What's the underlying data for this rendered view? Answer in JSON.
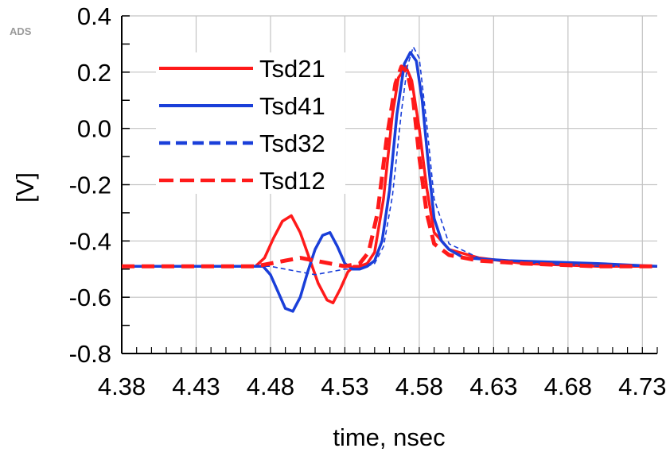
{
  "tool_label": "ADS",
  "chart_data": {
    "type": "line",
    "title": "",
    "xlabel": "time, nsec",
    "ylabel": "[V]",
    "xlim": [
      4.38,
      4.74
    ],
    "ylim": [
      -0.8,
      0.4
    ],
    "x_ticks": [
      "4.38",
      "4.43",
      "4.48",
      "4.53",
      "4.58",
      "4.63",
      "4.68",
      "4.73"
    ],
    "x_tick_values": [
      4.38,
      4.43,
      4.48,
      4.53,
      4.58,
      4.63,
      4.68,
      4.73
    ],
    "y_ticks": [
      "0.4",
      "0.2",
      "0.0",
      "-0.2",
      "-0.4",
      "-0.6",
      "-0.8"
    ],
    "y_tick_values": [
      0.4,
      0.2,
      0.0,
      -0.2,
      -0.4,
      -0.6,
      -0.8
    ],
    "grid": true,
    "legend_position": "top-left",
    "series": [
      {
        "name": "Tsd21",
        "color": "#ff1a1a",
        "style": "solid",
        "x": [
          4.38,
          4.47,
          4.476,
          4.482,
          4.488,
          4.494,
          4.5,
          4.506,
          4.512,
          4.518,
          4.522,
          4.527,
          4.532,
          4.536,
          4.54,
          4.545,
          4.55,
          4.556,
          4.562,
          4.566,
          4.571,
          4.575,
          4.58,
          4.585,
          4.59,
          4.6,
          4.62,
          4.65,
          4.7,
          4.74
        ],
        "y": [
          -0.49,
          -0.49,
          -0.46,
          -0.39,
          -0.33,
          -0.31,
          -0.37,
          -0.46,
          -0.55,
          -0.61,
          -0.62,
          -0.57,
          -0.51,
          -0.49,
          -0.49,
          -0.48,
          -0.44,
          -0.25,
          0.05,
          0.18,
          0.22,
          0.17,
          0.0,
          -0.21,
          -0.37,
          -0.43,
          -0.46,
          -0.48,
          -0.49,
          -0.49
        ]
      },
      {
        "name": "Tsd41",
        "color": "#1a3fd9",
        "style": "solid",
        "x": [
          4.38,
          4.475,
          4.48,
          4.485,
          4.49,
          4.495,
          4.5,
          4.505,
          4.51,
          4.515,
          4.52,
          4.525,
          4.53,
          4.535,
          4.54,
          4.545,
          4.55,
          4.555,
          4.56,
          4.565,
          4.57,
          4.574,
          4.578,
          4.582,
          4.586,
          4.59,
          4.595,
          4.6,
          4.61,
          4.64,
          4.7,
          4.74
        ],
        "y": [
          -0.49,
          -0.49,
          -0.52,
          -0.58,
          -0.64,
          -0.65,
          -0.6,
          -0.51,
          -0.43,
          -0.38,
          -0.37,
          -0.42,
          -0.48,
          -0.5,
          -0.5,
          -0.49,
          -0.47,
          -0.4,
          -0.22,
          0.05,
          0.23,
          0.27,
          0.24,
          0.1,
          -0.12,
          -0.32,
          -0.4,
          -0.43,
          -0.46,
          -0.47,
          -0.48,
          -0.49
        ]
      },
      {
        "name": "Tsd32",
        "color": "#1a3fd9",
        "style": "dashed",
        "x": [
          4.38,
          4.47,
          4.48,
          4.49,
          4.5,
          4.51,
          4.52,
          4.53,
          4.54,
          4.55,
          4.556,
          4.562,
          4.568,
          4.572,
          4.576,
          4.58,
          4.585,
          4.59,
          4.6,
          4.62,
          4.66,
          4.7,
          4.74
        ],
        "y": [
          -0.49,
          -0.49,
          -0.49,
          -0.5,
          -0.51,
          -0.52,
          -0.51,
          -0.5,
          -0.5,
          -0.48,
          -0.42,
          -0.24,
          0.06,
          0.22,
          0.29,
          0.25,
          0.02,
          -0.25,
          -0.41,
          -0.46,
          -0.48,
          -0.49,
          -0.49
        ]
      },
      {
        "name": "Tsd12",
        "color": "#ff1a1a",
        "style": "dashed",
        "x": [
          4.38,
          4.47,
          4.48,
          4.49,
          4.5,
          4.51,
          4.52,
          4.53,
          4.54,
          4.546,
          4.552,
          4.558,
          4.564,
          4.568,
          4.572,
          4.576,
          4.58,
          4.585,
          4.59,
          4.6,
          4.62,
          4.65,
          4.7,
          4.74
        ],
        "y": [
          -0.49,
          -0.49,
          -0.48,
          -0.47,
          -0.46,
          -0.47,
          -0.48,
          -0.49,
          -0.48,
          -0.44,
          -0.3,
          -0.04,
          0.16,
          0.22,
          0.2,
          0.1,
          -0.1,
          -0.3,
          -0.41,
          -0.45,
          -0.47,
          -0.48,
          -0.49,
          -0.49
        ]
      }
    ]
  }
}
